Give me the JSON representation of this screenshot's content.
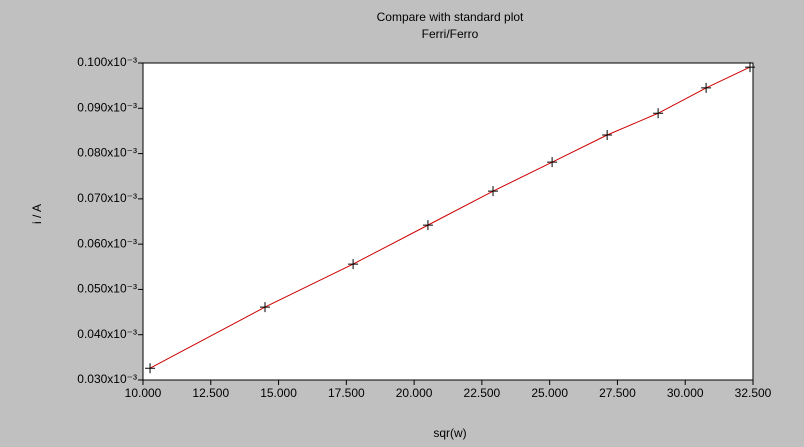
{
  "chart_data": {
    "type": "scatter",
    "title": "Compare with standard plot",
    "subtitle": "Ferri/Ferro",
    "x_label": "sqr(w)",
    "y_label": "i / A",
    "xlim": [
      10,
      32.5
    ],
    "xticks": [
      {
        "value": 10,
        "label": "10.000"
      },
      {
        "value": 12.5,
        "label": "12.500"
      },
      {
        "value": 15,
        "label": "15.000"
      },
      {
        "value": 17.5,
        "label": "17.500"
      },
      {
        "value": 20,
        "label": "20.000"
      },
      {
        "value": 22.5,
        "label": "22.500"
      },
      {
        "value": 25,
        "label": "25.000"
      },
      {
        "value": 27.5,
        "label": "27.500"
      },
      {
        "value": 30,
        "label": "30.000"
      },
      {
        "value": 32.5,
        "label": "32.500"
      }
    ],
    "ylim": [
      3e-05,
      0.0001
    ],
    "yticks": [
      {
        "value": 3e-05,
        "label": "0.030x10⁻³"
      },
      {
        "value": 4e-05,
        "label": "0.040x10⁻³"
      },
      {
        "value": 5e-05,
        "label": "0.050x10⁻³"
      },
      {
        "value": 6e-05,
        "label": "0.060x10⁻³"
      },
      {
        "value": 7e-05,
        "label": "0.070x10⁻³"
      },
      {
        "value": 8e-05,
        "label": "0.080x10⁻³"
      },
      {
        "value": 9e-05,
        "label": "0.090x10⁻³"
      },
      {
        "value": 0.0001,
        "label": "0.100x10⁻³"
      }
    ],
    "x": [
      10.26,
      14.5,
      17.75,
      20.51,
      22.91,
      25.09,
      27.12,
      29.0,
      30.77,
      32.39
    ],
    "values": [
      3.26e-05,
      4.61e-05,
      5.56e-05,
      6.42e-05,
      7.17e-05,
      7.81e-05,
      8.41e-05,
      8.89e-05,
      9.45e-05,
      9.91e-05
    ],
    "color": "#000000",
    "line_color": "#cc0000"
  }
}
